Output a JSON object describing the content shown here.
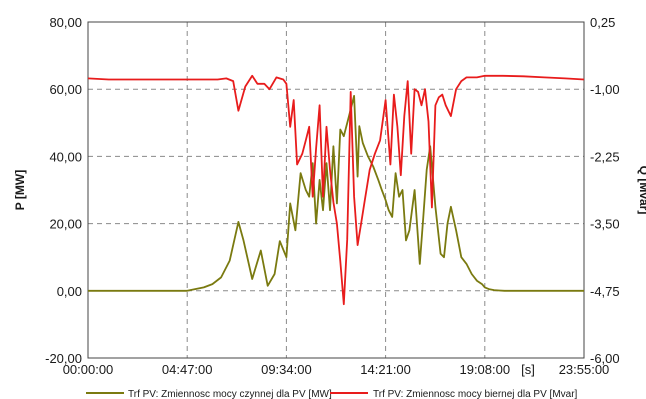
{
  "chart_data": {
    "type": "line",
    "xlabel": "[s]",
    "ylabel_left": "P [MW]",
    "ylabel_right": "Q [Mvar]",
    "x_range": [
      "00:00:00",
      "23:55:00"
    ],
    "y_left_range": [
      -20,
      80
    ],
    "y_right_range": [
      -6,
      0.25
    ],
    "x_ticks": [
      "00:00:00",
      "04:47:00",
      "09:34:00",
      "14:21:00",
      "19:08:00",
      "23:55:00"
    ],
    "y_left_ticks": [
      "80,00",
      "60,00",
      "40,00",
      "20,00",
      "0,00",
      "-20,00"
    ],
    "y_right_ticks": [
      "0,25",
      "-1,00",
      "-2,25",
      "-3,50",
      "-4,75",
      "-6,00"
    ],
    "grid": true,
    "legend_position": "bottom",
    "series": [
      {
        "name": "Trf PV: Zmiennosc mocy czynnej dla PV [MW]",
        "axis": "left",
        "color": "#7a7a10",
        "x": [
          "00:00:00",
          "01:00:00",
          "02:00:00",
          "03:00:00",
          "04:00:00",
          "04:47:00",
          "05:10:00",
          "05:35:00",
          "06:00:00",
          "06:25:00",
          "06:50:00",
          "07:15:00",
          "07:30:00",
          "07:55:00",
          "08:20:00",
          "08:40:00",
          "09:00:00",
          "09:15:00",
          "09:34:00",
          "09:45:00",
          "10:00:00",
          "10:15:00",
          "10:30:00",
          "10:40:00",
          "10:50:00",
          "11:00:00",
          "11:10:00",
          "11:20:00",
          "11:30:00",
          "11:40:00",
          "11:50:00",
          "12:00:00",
          "12:10:00",
          "12:20:00",
          "12:35:00",
          "12:50:00",
          "13:00:00",
          "13:05:00",
          "13:15:00",
          "13:30:00",
          "13:45:00",
          "14:00:00",
          "14:10:00",
          "14:21:00",
          "14:30:00",
          "14:40:00",
          "14:50:00",
          "15:00:00",
          "15:10:00",
          "15:20:00",
          "15:30:00",
          "15:45:00",
          "16:00:00",
          "16:10:00",
          "16:20:00",
          "16:30:00",
          "16:45:00",
          "17:00:00",
          "17:10:00",
          "17:20:00",
          "17:30:00",
          "17:45:00",
          "18:00:00",
          "18:15:00",
          "18:30:00",
          "18:45:00",
          "19:00:00",
          "19:08:00",
          "19:20:00",
          "19:35:00",
          "19:50:00",
          "20:05:00",
          "20:30:00",
          "21:00:00",
          "22:00:00",
          "23:00:00",
          "23:55:00"
        ],
        "y": [
          0,
          0,
          0,
          0,
          0,
          0,
          0.5,
          1,
          2,
          4,
          9,
          20.5,
          15,
          3.5,
          12,
          1.5,
          5,
          14.8,
          10,
          26,
          18,
          35,
          30,
          28,
          38,
          20,
          33,
          24,
          38,
          24,
          43,
          26,
          48,
          46,
          52,
          58,
          34,
          49,
          44,
          40,
          37,
          33,
          30,
          27,
          24,
          22,
          35,
          28,
          30,
          15,
          18,
          30,
          8,
          22,
          36,
          43,
          25,
          11,
          10,
          20,
          25,
          18,
          10,
          8,
          5,
          3,
          2,
          1,
          0.5,
          0.2,
          0.1,
          0,
          0,
          0,
          0,
          0,
          0
        ]
      },
      {
        "name": "Trf PV: Zmiennosc mocy biernej dla PV [Mvar]",
        "axis": "right",
        "color": "#e81c1c",
        "x": [
          "00:00:00",
          "01:00:00",
          "02:00:00",
          "03:00:00",
          "04:00:00",
          "04:47:00",
          "05:30:00",
          "06:15:00",
          "06:40:00",
          "07:00:00",
          "07:15:00",
          "07:35:00",
          "07:55:00",
          "08:10:00",
          "08:30:00",
          "08:45:00",
          "09:05:00",
          "09:25:00",
          "09:34:00",
          "09:45:00",
          "09:55:00",
          "10:05:00",
          "10:20:00",
          "10:30:00",
          "10:40:00",
          "10:50:00",
          "11:00:00",
          "11:10:00",
          "11:20:00",
          "11:30:00",
          "11:40:00",
          "11:50:00",
          "12:00:00",
          "12:10:00",
          "12:20:00",
          "12:30:00",
          "12:40:00",
          "12:50:00",
          "13:00:00",
          "13:10:00",
          "13:20:00",
          "13:35:00",
          "13:50:00",
          "14:05:00",
          "14:21:00",
          "14:35:00",
          "14:45:00",
          "14:55:00",
          "15:05:00",
          "15:15:00",
          "15:25:00",
          "15:35:00",
          "15:45:00",
          "15:55:00",
          "16:05:00",
          "16:15:00",
          "16:25:00",
          "16:35:00",
          "16:45:00",
          "16:55:00",
          "17:05:00",
          "17:15:00",
          "17:30:00",
          "17:45:00",
          "18:00:00",
          "18:15:00",
          "18:30:00",
          "18:45:00",
          "19:08:00",
          "19:30:00",
          "20:00:00",
          "21:00:00",
          "22:00:00",
          "23:00:00",
          "23:55:00"
        ],
        "y": [
          -0.8,
          -0.82,
          -0.82,
          -0.82,
          -0.82,
          -0.82,
          -0.82,
          -0.82,
          -0.8,
          -0.85,
          -1.4,
          -0.95,
          -0.75,
          -0.9,
          -0.9,
          -1.0,
          -0.78,
          -0.82,
          -0.9,
          -1.7,
          -1.2,
          -2.4,
          -2.2,
          -1.95,
          -1.7,
          -3.0,
          -2.1,
          -1.3,
          -3.0,
          -1.7,
          -2.5,
          -3.1,
          -3.5,
          -4.2,
          -5.0,
          -3.8,
          -1.05,
          -3.0,
          -3.9,
          -3.5,
          -3.1,
          -2.5,
          -2.2,
          -1.95,
          -1.2,
          -2.4,
          -1.1,
          -1.7,
          -2.6,
          -1.5,
          -0.85,
          -2.2,
          -1.0,
          -1.05,
          -1.3,
          -1.0,
          -1.6,
          -3.2,
          -1.3,
          -1.15,
          -1.1,
          -1.3,
          -1.5,
          -1.0,
          -0.85,
          -0.78,
          -0.78,
          -0.78,
          -0.75,
          -0.75,
          -0.75,
          -0.76,
          -0.78,
          -0.8,
          -0.82
        ]
      }
    ]
  }
}
